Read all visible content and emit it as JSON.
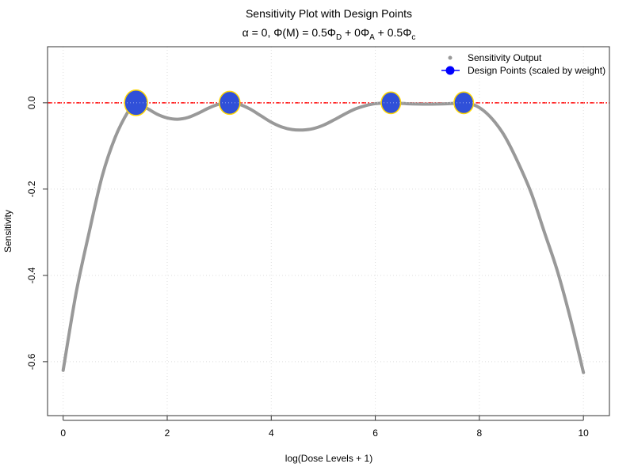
{
  "chart_data": {
    "type": "line",
    "title": "Sensitivity Plot with Design Points",
    "subtitle": {
      "alpha_part": "α = 0, Φ(M) = 0.5Φ",
      "sub_D": "D",
      "mid": " + 0Φ",
      "sub_A": "A",
      "end": " + 0.5Φ",
      "sub_c": "c"
    },
    "xlabel": "log(Dose Levels + 1)",
    "ylabel": "Sensitivity",
    "xlim": [
      -0.3,
      10.5
    ],
    "ylim": [
      -0.725,
      0.13
    ],
    "xticks": [
      0,
      2,
      4,
      6,
      8,
      10
    ],
    "xtick_labels": [
      "0",
      "2",
      "4",
      "6",
      "8",
      "10"
    ],
    "yticks": [
      0,
      -0.2,
      -0.4,
      -0.6
    ],
    "ytick_labels": [
      "0.0",
      "-0.2",
      "-0.4",
      "-0.6"
    ],
    "grid": true,
    "legend_position": "top-right",
    "legend": [
      "Sensitivity Output",
      "Design Points (scaled by weight)"
    ],
    "reference_line": {
      "y": 0,
      "color": "#ff0000"
    },
    "series": [
      {
        "name": "Sensitivity Output",
        "color": "#999999",
        "x": [
          0,
          0.25,
          0.5,
          0.75,
          1.0,
          1.25,
          1.4,
          1.6,
          1.8,
          2.0,
          2.2,
          2.4,
          2.6,
          2.8,
          3.0,
          3.2,
          3.4,
          3.6,
          3.8,
          4.0,
          4.2,
          4.4,
          4.6,
          4.8,
          5.0,
          5.2,
          5.4,
          5.6,
          5.8,
          6.0,
          6.3,
          6.6,
          7.0,
          7.4,
          7.7,
          7.9,
          8.1,
          8.3,
          8.5,
          8.75,
          9.0,
          9.25,
          9.5,
          9.75,
          10
        ],
        "y": [
          -0.62,
          -0.44,
          -0.3,
          -0.17,
          -0.08,
          -0.02,
          0,
          -0.012,
          -0.026,
          -0.035,
          -0.038,
          -0.034,
          -0.024,
          -0.012,
          -0.003,
          0,
          -0.004,
          -0.015,
          -0.03,
          -0.045,
          -0.056,
          -0.062,
          -0.063,
          -0.06,
          -0.052,
          -0.04,
          -0.027,
          -0.015,
          -0.007,
          -0.002,
          0,
          -0.002,
          -0.003,
          -0.002,
          0,
          -0.005,
          -0.02,
          -0.045,
          -0.08,
          -0.14,
          -0.21,
          -0.3,
          -0.39,
          -0.5,
          -0.625
        ]
      },
      {
        "name": "Design Points (scaled by weight)",
        "color": "#3050d8",
        "edge": "#ffd700",
        "x": [
          1.4,
          3.2,
          6.3,
          7.7
        ],
        "y": [
          0,
          0,
          0,
          0
        ],
        "weight": [
          0.35,
          0.25,
          0.2,
          0.2
        ]
      }
    ]
  }
}
